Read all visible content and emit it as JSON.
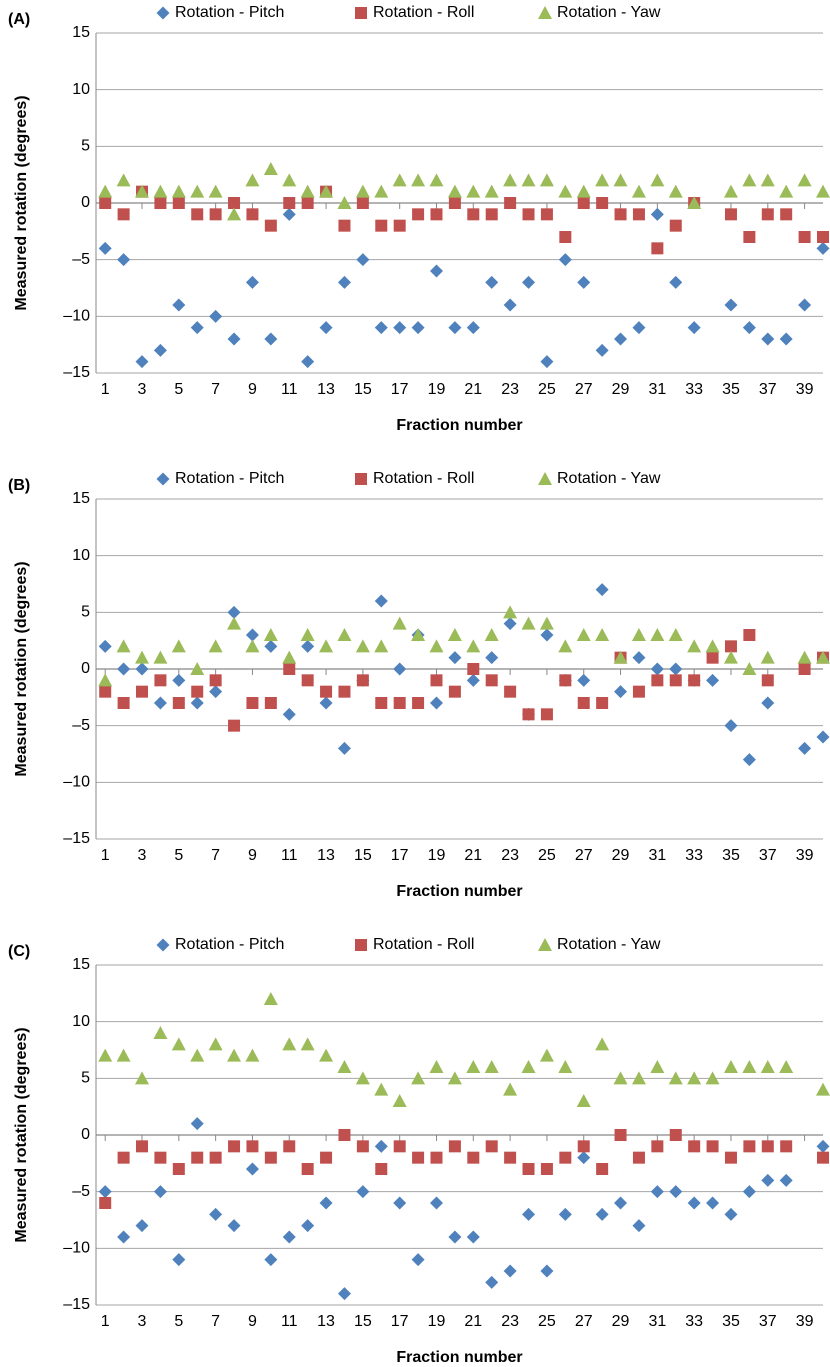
{
  "chart_data": [
    {
      "type": "scatter",
      "panel_label": "(A)",
      "xlabel": "Fraction number",
      "ylabel": "Measured rotation (degrees)",
      "x": [
        1,
        2,
        3,
        4,
        5,
        6,
        7,
        8,
        9,
        10,
        11,
        12,
        13,
        14,
        15,
        16,
        17,
        18,
        19,
        20,
        21,
        22,
        23,
        24,
        25,
        26,
        27,
        28,
        29,
        30,
        31,
        32,
        33,
        34,
        35,
        36,
        37,
        38,
        39,
        40
      ],
      "xlim": [
        0.5,
        40
      ],
      "xticks": [
        1,
        3,
        5,
        7,
        9,
        11,
        13,
        15,
        17,
        19,
        21,
        23,
        25,
        27,
        29,
        31,
        33,
        35,
        37,
        39
      ],
      "ylim": [
        -15,
        15
      ],
      "yticks": [
        {
          "value": -15,
          "label": "–15"
        },
        {
          "value": -10,
          "label": "–10"
        },
        {
          "value": -5,
          "label": "–5"
        },
        0,
        5,
        10,
        15
      ],
      "grid": true,
      "legend": "top",
      "series": [
        {
          "name": "Rotation - Pitch",
          "color": "#4f81bd",
          "marker": "diamond",
          "values": [
            -4,
            -5,
            -14,
            -13,
            -9,
            -11,
            -10,
            -12,
            -7,
            -12,
            -1,
            -14,
            -11,
            -7,
            -5,
            -11,
            -11,
            -11,
            -6,
            -11,
            -11,
            -7,
            -9,
            -7,
            -14,
            -5,
            -7,
            -13,
            -12,
            -11,
            -1,
            -7,
            -11,
            null,
            -9,
            -11,
            -12,
            -12,
            -9,
            -4
          ]
        },
        {
          "name": "Rotation - Roll",
          "color": "#c0504d",
          "marker": "square",
          "values": [
            0,
            -1,
            1,
            0,
            0,
            -1,
            -1,
            0,
            -1,
            -2,
            0,
            0,
            1,
            -2,
            0,
            -2,
            -2,
            -1,
            -1,
            0,
            -1,
            -1,
            0,
            -1,
            -1,
            -3,
            0,
            0,
            -1,
            -1,
            -4,
            -2,
            0,
            null,
            -1,
            -3,
            -1,
            -1,
            -3,
            -3
          ]
        },
        {
          "name": "Rotation - Yaw",
          "color": "#9bbb59",
          "marker": "triangle",
          "values": [
            1,
            2,
            1,
            1,
            1,
            1,
            1,
            -1,
            2,
            3,
            2,
            1,
            1,
            0,
            1,
            1,
            2,
            2,
            2,
            1,
            1,
            1,
            2,
            2,
            2,
            1,
            1,
            2,
            2,
            1,
            2,
            1,
            0,
            null,
            1,
            2,
            2,
            1,
            2,
            1
          ]
        }
      ]
    },
    {
      "type": "scatter",
      "panel_label": "(B)",
      "xlabel": "Fraction number",
      "ylabel": "Measured rotation (degrees)",
      "x": [
        1,
        2,
        3,
        4,
        5,
        6,
        7,
        8,
        9,
        10,
        11,
        12,
        13,
        14,
        15,
        16,
        17,
        18,
        19,
        20,
        21,
        22,
        23,
        24,
        25,
        26,
        27,
        28,
        29,
        30,
        31,
        32,
        33,
        34,
        35,
        36,
        37,
        38,
        39,
        40
      ],
      "xlim": [
        0.5,
        40
      ],
      "xticks": [
        1,
        3,
        5,
        7,
        9,
        11,
        13,
        15,
        17,
        19,
        21,
        23,
        25,
        27,
        29,
        31,
        33,
        35,
        37,
        39
      ],
      "ylim": [
        -15,
        15
      ],
      "yticks": [
        {
          "value": -15,
          "label": "–15"
        },
        {
          "value": -10,
          "label": "–10"
        },
        {
          "value": -5,
          "label": "–5"
        },
        0,
        5,
        10,
        15
      ],
      "grid": true,
      "legend": "top",
      "series": [
        {
          "name": "Rotation - Pitch",
          "color": "#4f81bd",
          "marker": "diamond",
          "values": [
            2,
            0,
            0,
            -3,
            -1,
            -3,
            -2,
            5,
            3,
            2,
            -4,
            2,
            -3,
            -7,
            -1,
            6,
            0,
            3,
            -3,
            1,
            -1,
            1,
            4,
            -4,
            3,
            -1,
            -1,
            7,
            -2,
            1,
            0,
            0,
            -1,
            -1,
            -5,
            -8,
            -3,
            null,
            -7,
            -6
          ]
        },
        {
          "name": "Rotation - Roll",
          "color": "#c0504d",
          "marker": "square",
          "values": [
            -2,
            -3,
            -2,
            -1,
            -3,
            -2,
            -1,
            -5,
            -3,
            -3,
            0,
            -1,
            -2,
            -2,
            -1,
            -3,
            -3,
            -3,
            -1,
            -2,
            0,
            -1,
            -2,
            -4,
            -4,
            -1,
            -3,
            -3,
            1,
            -2,
            -1,
            -1,
            -1,
            1,
            2,
            3,
            -1,
            null,
            0,
            1
          ]
        },
        {
          "name": "Rotation - Yaw",
          "color": "#9bbb59",
          "marker": "triangle",
          "values": [
            -1,
            2,
            1,
            1,
            2,
            0,
            2,
            4,
            2,
            3,
            1,
            3,
            2,
            3,
            2,
            2,
            4,
            3,
            2,
            3,
            2,
            3,
            5,
            4,
            4,
            2,
            3,
            3,
            1,
            3,
            3,
            3,
            2,
            2,
            1,
            0,
            1,
            null,
            1,
            1
          ]
        }
      ]
    },
    {
      "type": "scatter",
      "panel_label": "(C)",
      "xlabel": "Fraction number",
      "ylabel": "Measured rotation (degrees)",
      "x": [
        1,
        2,
        3,
        4,
        5,
        6,
        7,
        8,
        9,
        10,
        11,
        12,
        13,
        14,
        15,
        16,
        17,
        18,
        19,
        20,
        21,
        22,
        23,
        24,
        25,
        26,
        27,
        28,
        29,
        30,
        31,
        32,
        33,
        34,
        35,
        36,
        37,
        38,
        39,
        40
      ],
      "xlim": [
        0.5,
        40
      ],
      "xticks": [
        1,
        3,
        5,
        7,
        9,
        11,
        13,
        15,
        17,
        19,
        21,
        23,
        25,
        27,
        29,
        31,
        33,
        35,
        37,
        39
      ],
      "ylim": [
        -15,
        15
      ],
      "yticks": [
        {
          "value": -15,
          "label": "–15"
        },
        {
          "value": -10,
          "label": "–10"
        },
        {
          "value": -5,
          "label": "–5"
        },
        0,
        5,
        10,
        15
      ],
      "grid": true,
      "legend": "top",
      "series": [
        {
          "name": "Rotation - Pitch",
          "color": "#4f81bd",
          "marker": "diamond",
          "values": [
            -5,
            -9,
            -8,
            -5,
            -11,
            1,
            -7,
            -8,
            -3,
            -11,
            -9,
            -8,
            -6,
            -14,
            -5,
            -1,
            -6,
            -11,
            -6,
            -9,
            -9,
            -13,
            -12,
            -7,
            -12,
            -7,
            -2,
            -7,
            -6,
            -8,
            -5,
            -5,
            -6,
            -6,
            -7,
            -5,
            -4,
            -4,
            null,
            -1
          ]
        },
        {
          "name": "Rotation - Roll",
          "color": "#c0504d",
          "marker": "square",
          "values": [
            -6,
            -2,
            -1,
            -2,
            -3,
            -2,
            -2,
            -1,
            -1,
            -2,
            -1,
            -3,
            -2,
            0,
            -1,
            -3,
            -1,
            -2,
            -2,
            -1,
            -2,
            -1,
            -2,
            -3,
            -3,
            -2,
            -1,
            -3,
            0,
            -2,
            -1,
            0,
            -1,
            -1,
            -2,
            -1,
            -1,
            -1,
            null,
            -2
          ]
        },
        {
          "name": "Rotation - Yaw",
          "color": "#9bbb59",
          "marker": "triangle",
          "values": [
            7,
            7,
            5,
            9,
            8,
            7,
            8,
            7,
            7,
            12,
            8,
            8,
            7,
            6,
            5,
            4,
            3,
            5,
            6,
            5,
            6,
            6,
            4,
            6,
            7,
            6,
            3,
            8,
            5,
            5,
            6,
            5,
            5,
            5,
            6,
            6,
            6,
            6,
            null,
            4
          ]
        }
      ]
    }
  ]
}
